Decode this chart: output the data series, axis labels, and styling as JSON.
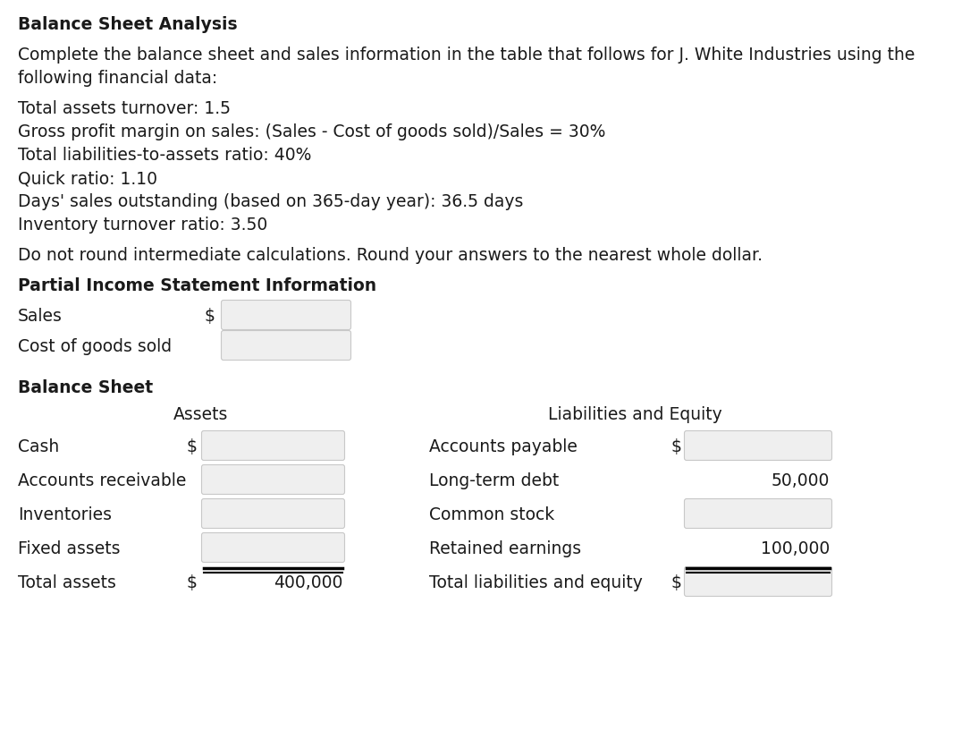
{
  "title": "Balance Sheet Analysis",
  "intro_lines": [
    "Complete the balance sheet and sales information in the table that follows for J. White Industries using the",
    "following financial data:"
  ],
  "financial_data": [
    "Total assets turnover: 1.5",
    "Gross profit margin on sales: (Sales - Cost of goods sold)/Sales = 30%",
    "Total liabilities-to-assets ratio: 40%",
    "Quick ratio: 1.10",
    "Days' sales outstanding (based on 365-day year): 36.5 days",
    "Inventory turnover ratio: 3.50"
  ],
  "note": "Do not round intermediate calculations. Round your answers to the nearest whole dollar.",
  "income_section_title": "Partial Income Statement Information",
  "income_rows": [
    {
      "label": "Sales",
      "dollar_sign": true,
      "box": true,
      "value": null
    },
    {
      "label": "Cost of goods sold",
      "dollar_sign": false,
      "box": true,
      "value": null
    }
  ],
  "balance_sheet_title": "Balance Sheet",
  "assets_header": "Assets",
  "liabilities_header": "Liabilities and Equity",
  "assets_rows": [
    {
      "label": "Cash",
      "dollar_sign": true,
      "box": true,
      "value": null
    },
    {
      "label": "Accounts receivable",
      "dollar_sign": false,
      "box": true,
      "value": null
    },
    {
      "label": "Inventories",
      "dollar_sign": false,
      "box": true,
      "value": null
    },
    {
      "label": "Fixed assets",
      "dollar_sign": false,
      "box": true,
      "value": null
    },
    {
      "label": "Total assets",
      "dollar_sign": true,
      "box": false,
      "value": "400,000",
      "underline": true
    }
  ],
  "liabilities_rows": [
    {
      "label": "Accounts payable",
      "dollar_sign": true,
      "box": true,
      "value": null
    },
    {
      "label": "Long-term debt",
      "dollar_sign": false,
      "box": false,
      "value": "50,000"
    },
    {
      "label": "Common stock",
      "dollar_sign": false,
      "box": true,
      "value": null
    },
    {
      "label": "Retained earnings",
      "dollar_sign": false,
      "box": false,
      "value": "100,000"
    },
    {
      "label": "Total liabilities and equity",
      "dollar_sign": true,
      "box": true,
      "value": null,
      "underline": true
    }
  ],
  "bg_color": "#ffffff",
  "box_fill": "#efefef",
  "box_edge": "#c8c8c8",
  "text_color": "#1a1a1a",
  "font_size": 13.5
}
